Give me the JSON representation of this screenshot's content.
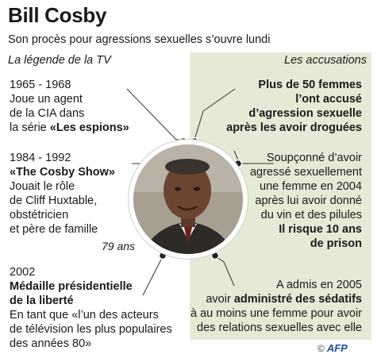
{
  "title": "Bill Cosby",
  "subtitle": "Son procès pour agressions sexuelles s’ouvre lundi",
  "left_header": "La légende de la TV",
  "right_header": "Les accusations",
  "age": "79 ans",
  "left": [
    {
      "lines": [
        "1965 - 1968",
        "Joue un agent",
        "de la CIA dans"
      ],
      "last_plain": "la série ",
      "last_bold": "«Les espions»"
    },
    {
      "lines": [
        "1984 - 1992"
      ],
      "bold": "«The Cosby Show»",
      "rest": [
        "Jouait le rôle",
        "de Cliff Huxtable,",
        "obstétricien",
        "et père de famille"
      ]
    },
    {
      "year": "2002",
      "bold": [
        "Médaille présidentielle",
        "de la liberté"
      ],
      "rest": [
        "En tant que «l’un des acteurs",
        "de télévision les plus populaires",
        "des années 80»"
      ]
    }
  ],
  "right": [
    {
      "bold": [
        "Plus de 50 femmes",
        "l’ont accusé",
        "d’agression sexuelle",
        "après les avoir droguées"
      ]
    },
    {
      "lines": [
        "Soupçonné d’avoir",
        "agressé sexuellement",
        "une femme en 2004",
        "après lui avoir donné",
        "du vin et des pilules"
      ],
      "bold": [
        "Il risque 10 ans",
        "de prison"
      ]
    },
    {
      "line1": "A admis en 2005",
      "line2_plain": "avoir ",
      "line2_bold": "administré des sédatifs",
      "rest": [
        "à au moins une femme pour avoir",
        "des relations sexuelles avec elle"
      ]
    }
  ],
  "credit": {
    "copyright": "©",
    "agency": "AFP"
  }
}
